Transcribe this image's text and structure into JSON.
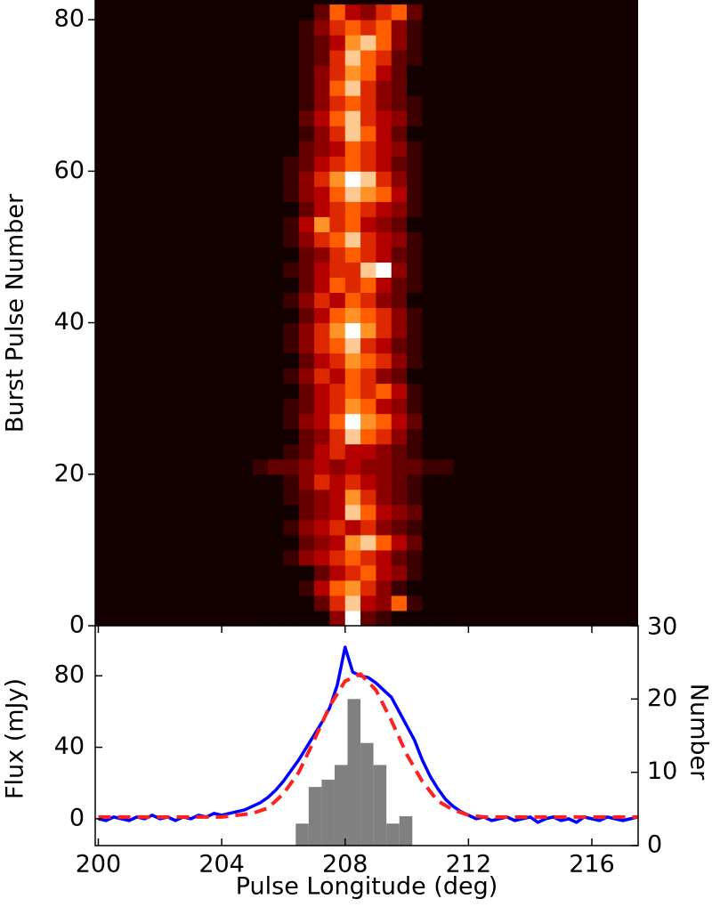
{
  "chart_data": [
    {
      "type": "heatmap",
      "ylabel": "Burst Pulse Number",
      "colormap": "gist_heat",
      "xlim": [
        199.9,
        217.5
      ],
      "ylim": [
        0,
        82.6
      ],
      "yticks": [
        0,
        20,
        40,
        60,
        80
      ],
      "xbins": [
        205,
        205.5,
        206,
        206.5,
        207,
        207.5,
        208,
        208.5,
        209,
        209.5,
        210,
        210.5,
        211,
        211.5
      ],
      "ybins": [
        0,
        2,
        4,
        6,
        8,
        10,
        12,
        14,
        16,
        18,
        20,
        22,
        24,
        26,
        28,
        30,
        32,
        34,
        36,
        38,
        40,
        42,
        44,
        46,
        48,
        50,
        52,
        54,
        56,
        58,
        60,
        62,
        64,
        66,
        68,
        70,
        72,
        74,
        76,
        78,
        80,
        82
      ],
      "z": [
        [
          0,
          0,
          0,
          0,
          0,
          3,
          9,
          2,
          1,
          0,
          0,
          0,
          0
        ],
        [
          0,
          0,
          0,
          0,
          2,
          5,
          8,
          4,
          3,
          6,
          1,
          0,
          0
        ],
        [
          0,
          0,
          0,
          1,
          4,
          6,
          7,
          5,
          3,
          1,
          0,
          0,
          0
        ],
        [
          0,
          0,
          0,
          0,
          2,
          4,
          5,
          6,
          4,
          3,
          1,
          0,
          0
        ],
        [
          0,
          0,
          1,
          3,
          4,
          5,
          6,
          5,
          4,
          2,
          1,
          0,
          0
        ],
        [
          0,
          0,
          0,
          2,
          3,
          4,
          7,
          8,
          6,
          4,
          2,
          0,
          0
        ],
        [
          0,
          0,
          1,
          3,
          4,
          5,
          4,
          5,
          3,
          2,
          1,
          0,
          0
        ],
        [
          0,
          0,
          0,
          2,
          3,
          4,
          8,
          6,
          4,
          3,
          2,
          0,
          0
        ],
        [
          0,
          0,
          1,
          2,
          3,
          4,
          7,
          5,
          3,
          2,
          1,
          0,
          0
        ],
        [
          0,
          0,
          1,
          3,
          5,
          4,
          5,
          4,
          3,
          2,
          1,
          0,
          0
        ],
        [
          1,
          2,
          2,
          3,
          4,
          3,
          4,
          3,
          3,
          2,
          2,
          1,
          1
        ],
        [
          0,
          0,
          1,
          2,
          4,
          5,
          4,
          4,
          3,
          2,
          1,
          0,
          0
        ],
        [
          0,
          0,
          0,
          2,
          3,
          5,
          8,
          6,
          5,
          3,
          1,
          0,
          0
        ],
        [
          0,
          0,
          1,
          3,
          4,
          6,
          9,
          7,
          6,
          4,
          2,
          0,
          0
        ],
        [
          0,
          0,
          1,
          2,
          4,
          5,
          7,
          6,
          4,
          3,
          1,
          0,
          0
        ],
        [
          0,
          0,
          0,
          2,
          4,
          5,
          6,
          5,
          6,
          4,
          1,
          0,
          0
        ],
        [
          0,
          0,
          1,
          3,
          5,
          4,
          6,
          5,
          3,
          2,
          0,
          0,
          0
        ],
        [
          0,
          0,
          0,
          2,
          4,
          5,
          7,
          6,
          5,
          3,
          1,
          0,
          0
        ],
        [
          0,
          0,
          1,
          3,
          5,
          6,
          8,
          5,
          4,
          2,
          1,
          0,
          0
        ],
        [
          0,
          0,
          1,
          3,
          5,
          7,
          9,
          7,
          5,
          3,
          1,
          0,
          0
        ],
        [
          0,
          0,
          0,
          2,
          4,
          6,
          7,
          6,
          5,
          3,
          1,
          0,
          0
        ],
        [
          0,
          0,
          1,
          3,
          5,
          4,
          6,
          5,
          3,
          2,
          0,
          0,
          0
        ],
        [
          0,
          0,
          0,
          2,
          4,
          6,
          5,
          6,
          4,
          2,
          1,
          0,
          0
        ],
        [
          0,
          0,
          1,
          2,
          4,
          5,
          5,
          8,
          9,
          3,
          1,
          0,
          0
        ],
        [
          0,
          0,
          0,
          2,
          3,
          5,
          6,
          5,
          4,
          2,
          1,
          0,
          0
        ],
        [
          0,
          0,
          1,
          3,
          5,
          6,
          8,
          5,
          4,
          3,
          1,
          0,
          0
        ],
        [
          0,
          0,
          1,
          4,
          7,
          5,
          6,
          4,
          3,
          2,
          0,
          0,
          0
        ],
        [
          0,
          0,
          0,
          2,
          4,
          5,
          6,
          5,
          4,
          3,
          1,
          0,
          0
        ],
        [
          0,
          0,
          1,
          3,
          4,
          6,
          8,
          7,
          6,
          4,
          1,
          0,
          0
        ],
        [
          0,
          0,
          1,
          3,
          5,
          7,
          9,
          8,
          5,
          3,
          1,
          0,
          0
        ],
        [
          0,
          0,
          1,
          2,
          4,
          5,
          6,
          5,
          4,
          2,
          1,
          0,
          0
        ],
        [
          0,
          0,
          0,
          2,
          3,
          4,
          6,
          5,
          4,
          3,
          1,
          0,
          0
        ],
        [
          0,
          0,
          0,
          1,
          3,
          5,
          8,
          6,
          4,
          2,
          0,
          0,
          0
        ],
        [
          0,
          0,
          0,
          2,
          4,
          6,
          8,
          5,
          4,
          3,
          1,
          0,
          0
        ],
        [
          0,
          0,
          0,
          1,
          3,
          5,
          6,
          5,
          3,
          2,
          1,
          0,
          0
        ],
        [
          0,
          0,
          0,
          1,
          3,
          6,
          8,
          5,
          3,
          2,
          0,
          0,
          0
        ],
        [
          0,
          0,
          0,
          1,
          3,
          5,
          7,
          6,
          4,
          2,
          0,
          0,
          0
        ],
        [
          0,
          0,
          0,
          1,
          2,
          5,
          8,
          6,
          5,
          2,
          1,
          0,
          0
        ],
        [
          0,
          0,
          0,
          1,
          2,
          4,
          7,
          8,
          6,
          3,
          1,
          0,
          0
        ],
        [
          0,
          0,
          0,
          1,
          3,
          5,
          6,
          5,
          6,
          3,
          1,
          0,
          0
        ],
        [
          0,
          0,
          0,
          0,
          2,
          6,
          4,
          3,
          5,
          6,
          2,
          0,
          0
        ]
      ]
    },
    {
      "type": "line",
      "xlabel": "Pulse Longitude (deg)",
      "ylabel": "Flux (mJy)",
      "y2label": "Number",
      "xlim": [
        199.9,
        217.5
      ],
      "xticks": [
        200,
        204,
        208,
        212,
        216
      ],
      "ylim": [
        -15,
        108
      ],
      "yticks": [
        0,
        40,
        80
      ],
      "y2lim": [
        0,
        30
      ],
      "y2ticks": [
        0,
        10,
        20,
        30
      ],
      "histogram": {
        "color": "#808080",
        "axis": "y2",
        "bins": [
          206.4,
          206.82,
          207.24,
          207.66,
          208.08,
          208.5,
          208.92,
          209.34,
          209.76,
          210.18
        ],
        "counts": [
          3,
          8,
          9,
          11,
          20,
          14,
          11,
          3,
          4
        ]
      },
      "series": [
        {
          "color": "#0000ff",
          "style": "solid",
          "x": [
            200,
            200.25,
            200.5,
            200.75,
            201,
            201.25,
            201.5,
            201.75,
            202,
            202.25,
            202.5,
            202.75,
            203,
            203.25,
            203.5,
            203.75,
            204,
            204.25,
            204.5,
            204.75,
            205,
            205.25,
            205.5,
            205.75,
            206,
            206.25,
            206.5,
            206.75,
            207,
            207.25,
            207.5,
            207.75,
            208,
            208.25,
            208.5,
            208.75,
            209,
            209.25,
            209.5,
            209.75,
            210,
            210.25,
            210.5,
            210.75,
            211,
            211.25,
            211.5,
            211.75,
            212,
            212.25,
            212.5,
            212.75,
            213,
            213.25,
            213.5,
            213.75,
            214,
            214.25,
            214.5,
            214.75,
            215,
            215.25,
            215.5,
            215.75,
            216,
            216.25,
            216.5,
            216.75,
            217,
            217.25,
            217.5
          ],
          "values": [
            0,
            -1,
            1,
            0,
            -1,
            1,
            0,
            2,
            0,
            1,
            -1,
            1,
            0,
            2,
            1,
            3,
            2,
            3,
            4,
            5,
            7,
            9,
            12,
            16,
            21,
            27,
            33,
            40,
            47,
            54,
            62,
            75,
            96,
            82,
            80,
            79,
            76,
            72,
            68,
            60,
            52,
            44,
            33,
            24,
            17,
            11,
            7,
            4,
            2,
            0,
            1,
            -1,
            0,
            1,
            -1,
            0,
            1,
            -2,
            0,
            1,
            -1,
            0,
            -2,
            1,
            0,
            -1,
            1,
            0,
            -1,
            0,
            1
          ]
        },
        {
          "color": "#ff2020",
          "style": "dashed",
          "x": [
            200,
            200.5,
            201,
            201.5,
            202,
            202.5,
            203,
            203.5,
            204,
            204.5,
            205,
            205.5,
            206,
            206.5,
            207,
            207.5,
            208,
            208.5,
            209,
            209.5,
            210,
            210.5,
            211,
            211.5,
            212,
            212.5,
            213,
            213.5,
            214,
            214.5,
            215,
            215.5,
            216,
            216.5,
            217,
            217.5
          ],
          "values": [
            1,
            1,
            1,
            1,
            1,
            1,
            1,
            1,
            1,
            2,
            3,
            6,
            14,
            26,
            44,
            63,
            77,
            81,
            72,
            55,
            36,
            21,
            10,
            5,
            2,
            1,
            1,
            1,
            1,
            1,
            1,
            1,
            1,
            1,
            1,
            1
          ]
        }
      ]
    }
  ]
}
